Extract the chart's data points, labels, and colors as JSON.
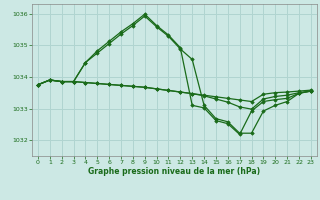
{
  "title": "Graphe pression niveau de la mer (hPa)",
  "background_color": "#cce8e4",
  "grid_color": "#b0d4d0",
  "line_color": "#1a6b1a",
  "marker_color": "#1a6b1a",
  "xlim": [
    -0.5,
    23.5
  ],
  "ylim": [
    1031.5,
    1036.3
  ],
  "yticks": [
    1032,
    1033,
    1034,
    1035,
    1036
  ],
  "xticks": [
    0,
    1,
    2,
    3,
    4,
    5,
    6,
    7,
    8,
    9,
    10,
    11,
    12,
    13,
    14,
    15,
    16,
    17,
    18,
    19,
    20,
    21,
    22,
    23
  ],
  "series": [
    [
      1033.75,
      1033.9,
      1033.85,
      1033.85,
      1033.82,
      1033.79,
      1033.76,
      1033.73,
      1033.7,
      1033.67,
      1033.62,
      1033.57,
      1033.52,
      1033.47,
      1033.42,
      1033.37,
      1033.32,
      1033.27,
      1033.22,
      1033.45,
      1033.5,
      1033.52,
      1033.55,
      1033.58
    ],
    [
      1033.75,
      1033.9,
      1033.85,
      1033.85,
      1033.82,
      1033.79,
      1033.76,
      1033.73,
      1033.7,
      1033.67,
      1033.62,
      1033.57,
      1033.52,
      1033.47,
      1033.4,
      1033.3,
      1033.2,
      1033.05,
      1032.98,
      1033.3,
      1033.38,
      1033.42,
      1033.5,
      1033.55
    ],
    [
      1033.75,
      1033.9,
      1033.85,
      1033.85,
      1034.45,
      1034.75,
      1035.05,
      1035.35,
      1035.62,
      1035.92,
      1035.58,
      1035.28,
      1034.88,
      1034.55,
      1033.1,
      1032.68,
      1032.58,
      1032.22,
      1032.22,
      1032.92,
      1033.1,
      1033.22,
      1033.48,
      1033.55
    ],
    [
      1033.75,
      1033.9,
      1033.85,
      1033.85,
      1034.45,
      1034.82,
      1035.12,
      1035.42,
      1035.68,
      1035.98,
      1035.62,
      1035.32,
      1034.92,
      1033.1,
      1033.02,
      1032.62,
      1032.52,
      1032.18,
      1032.92,
      1033.22,
      1033.28,
      1033.32,
      1033.48,
      1033.55
    ]
  ]
}
